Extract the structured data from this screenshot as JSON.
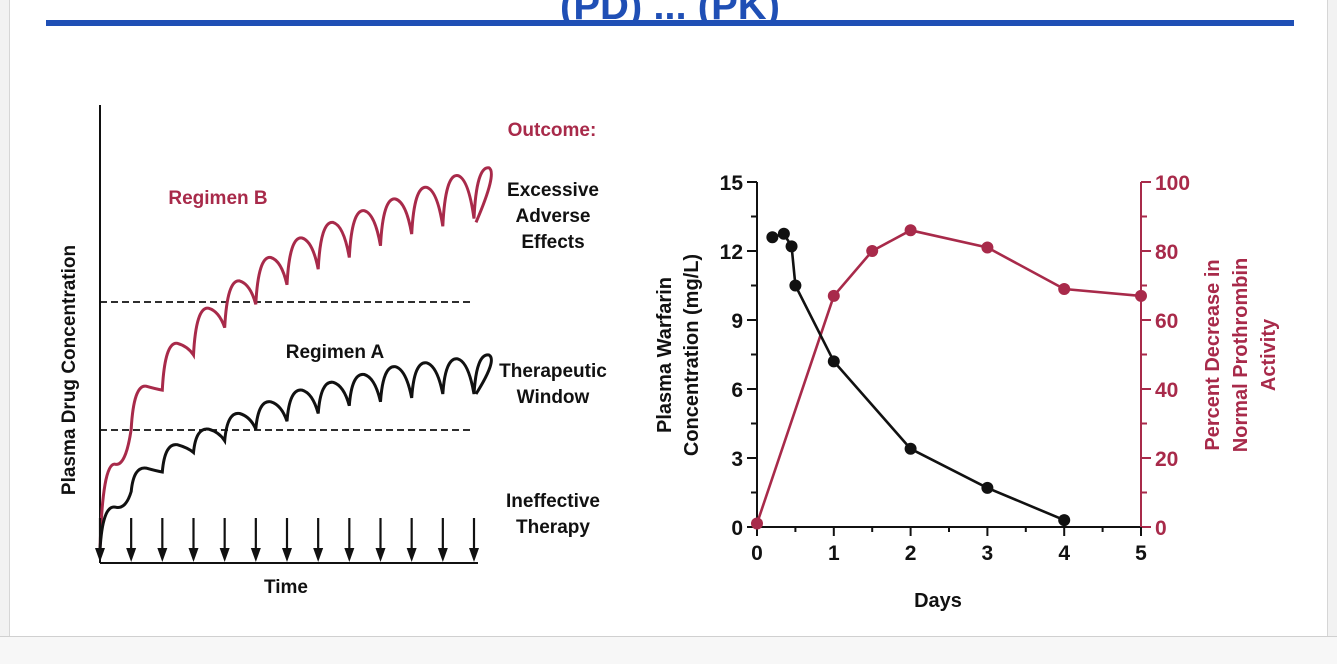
{
  "slide": {
    "title": "(PD) ... (PK)",
    "colors": {
      "title_blue": "#1f4fb5",
      "warfarin_red": "#a82a4a",
      "black": "#111111"
    }
  },
  "chart_data": [
    {
      "type": "line",
      "title": "",
      "xlabel": "Time",
      "ylabel": "Plasma Drug Concentration",
      "outcome_heading": "Outcome:",
      "outcomes": [
        [
          "Excessive",
          "Adverse",
          "Effects"
        ],
        [
          "Therapeutic",
          "Window"
        ],
        [
          "Ineffective",
          "Therapy"
        ]
      ],
      "series": [
        {
          "name": "Regimen B",
          "color": "#a82a4a",
          "peaks": [
            0.22,
            0.42,
            0.53,
            0.62,
            0.69,
            0.75,
            0.8,
            0.84,
            0.87,
            0.9,
            0.93,
            0.96,
            0.98,
            1.0
          ],
          "troughs": [
            0.0,
            0.31,
            0.41,
            0.5,
            0.57,
            0.63,
            0.68,
            0.72,
            0.75,
            0.78,
            0.81,
            0.83,
            0.85,
            0.84
          ]
        },
        {
          "name": "Regimen A",
          "color": "#111111",
          "peaks": [
            0.11,
            0.21,
            0.27,
            0.31,
            0.35,
            0.38,
            0.41,
            0.43,
            0.45,
            0.47,
            0.48,
            0.49,
            0.5,
            0.51
          ],
          "troughs": [
            0.0,
            0.15,
            0.2,
            0.25,
            0.28,
            0.31,
            0.33,
            0.35,
            0.37,
            0.38,
            0.39,
            0.4,
            0.4,
            0.4
          ]
        }
      ],
      "threshold_lower": 0.33,
      "threshold_upper": 0.63,
      "dose_count": 12
    },
    {
      "type": "line",
      "title": "",
      "xlabel": "Days",
      "ylabel": [
        "Plasma Warfarin",
        "Concentration (mg/L)"
      ],
      "y2label": [
        "Percent Decrease in",
        "Normal Prothrombin",
        "Activity"
      ],
      "xlim": [
        0,
        5
      ],
      "ylim": [
        0,
        15
      ],
      "y2lim": [
        0,
        100
      ],
      "xticks": [
        "0",
        "1",
        "2",
        "3",
        "4",
        "5"
      ],
      "yticks": [
        "0",
        "3",
        "6",
        "9",
        "12",
        "15"
      ],
      "y2ticks": [
        "0",
        "20",
        "40",
        "60",
        "80",
        "100"
      ],
      "series": [
        {
          "name": "Plasma Warfarin Concentration",
          "axis": "left",
          "color": "#111111",
          "x": [
            0.2,
            0.35,
            0.45,
            0.5,
            1,
            2,
            3,
            4
          ],
          "y": [
            12.6,
            12.75,
            12.2,
            10.5,
            7.2,
            3.4,
            1.7,
            0.3
          ]
        },
        {
          "name": "Percent Decrease in Normal Prothrombin Activity",
          "axis": "right",
          "color": "#a82a4a",
          "x": [
            0,
            1,
            1.5,
            2,
            3,
            4,
            5
          ],
          "y": [
            1,
            67,
            80,
            86,
            81,
            69,
            67
          ]
        }
      ]
    }
  ]
}
